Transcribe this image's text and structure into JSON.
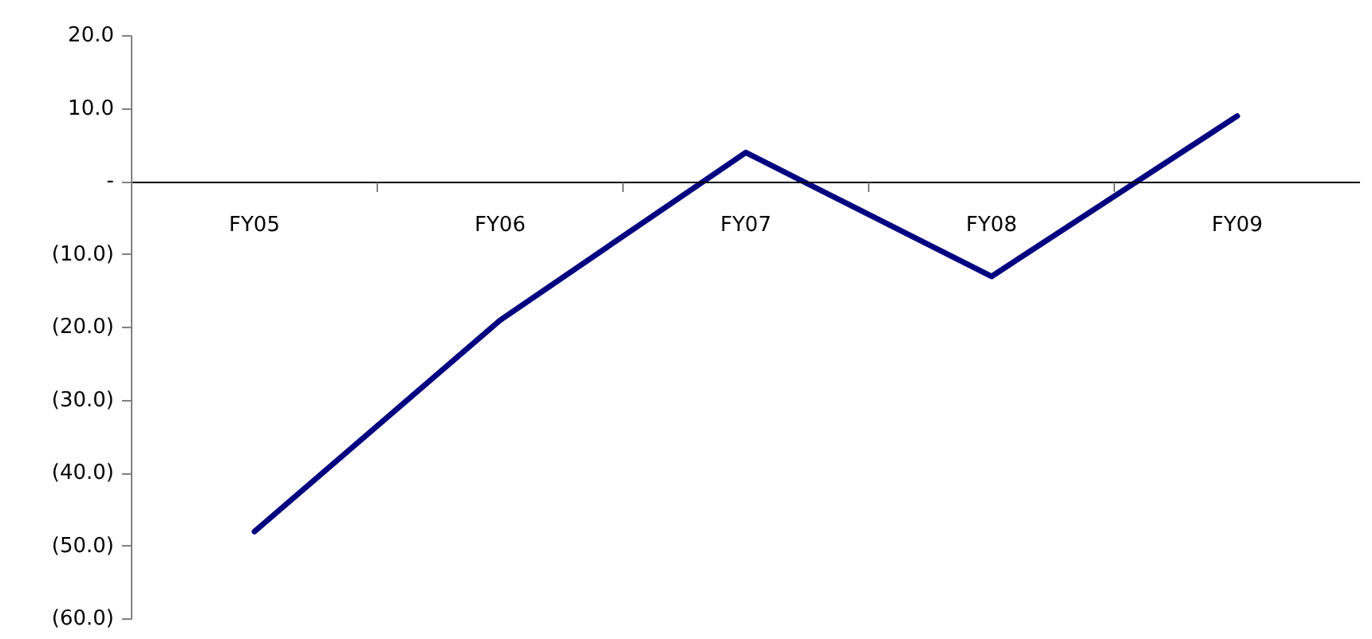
{
  "chart_data": {
    "type": "line",
    "categories": [
      "FY05",
      "FY06",
      "FY07",
      "FY08",
      "FY09"
    ],
    "series": [
      {
        "color": "#000080",
        "values": [
          -48,
          -19,
          4,
          -13,
          9
        ]
      }
    ],
    "ylim": [
      -60,
      20
    ],
    "yticks": [
      {
        "value": -60,
        "label": "(60.0)"
      },
      {
        "value": -50,
        "label": "(50.0)"
      },
      {
        "value": -40,
        "label": "(40.0)"
      },
      {
        "value": -30,
        "label": "(30.0)"
      },
      {
        "value": -20,
        "label": "(20.0)"
      },
      {
        "value": -10,
        "label": "(10.0)"
      },
      {
        "value": 0,
        "label": "-"
      },
      {
        "value": 10,
        "label": "10.0"
      },
      {
        "value": 20,
        "label": "20.0"
      }
    ],
    "grid": false,
    "marker": "none",
    "line_style": "solid"
  }
}
